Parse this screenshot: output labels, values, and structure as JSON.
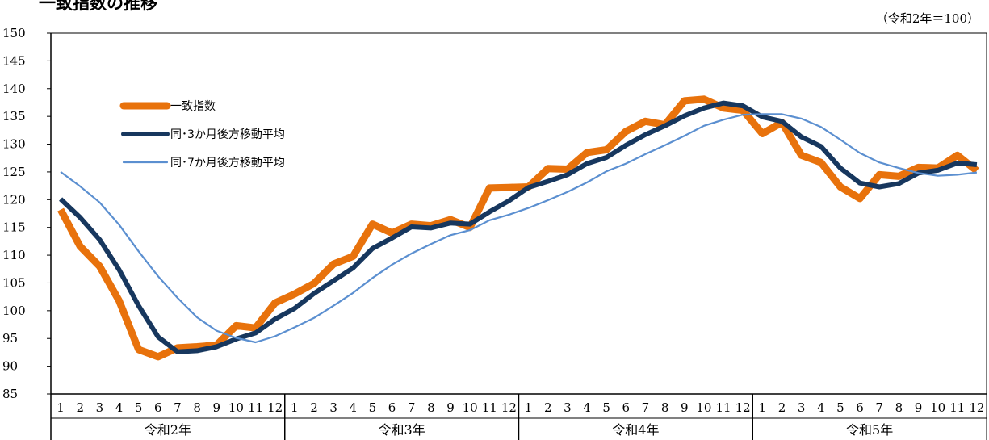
{
  "title": "一致指数の推移",
  "unit_note": "（令和2年＝100）",
  "chart_data": {
    "type": "line",
    "ylim": [
      85,
      150
    ],
    "y_ticks": [
      85,
      90,
      95,
      100,
      105,
      110,
      115,
      120,
      125,
      130,
      135,
      140,
      145,
      150
    ],
    "month_labels": [
      "1",
      "2",
      "3",
      "4",
      "5",
      "6",
      "7",
      "8",
      "9",
      "10",
      "11",
      "12"
    ],
    "years": [
      "令和2年",
      "令和3年",
      "令和4年",
      "令和5年"
    ],
    "legend_placement": "top-left",
    "series": [
      {
        "name": "一致指数",
        "color": "#E8720C",
        "values": [
          118.2,
          111.6,
          108.0,
          101.8,
          93.0,
          91.7,
          93.3,
          93.5,
          93.8,
          97.3,
          96.9,
          101.4,
          103.0,
          104.9,
          108.4,
          109.8,
          115.6,
          114.0,
          115.6,
          115.3,
          116.4,
          115.0,
          122.1,
          122.2,
          122.3,
          125.6,
          125.5,
          128.5,
          129.0,
          132.3,
          134.1,
          133.5,
          137.8,
          138.1,
          136.5,
          136.1,
          131.9,
          133.9,
          128.0,
          126.7,
          122.3,
          120.2,
          124.5,
          124.2,
          125.8,
          125.7,
          128.0,
          125.2
        ]
      },
      {
        "name": "同･3か月後方移動平均",
        "color": "#17375E",
        "values": [
          120.1,
          116.8,
          112.8,
          107.4,
          100.9,
          95.3,
          92.6,
          92.8,
          93.5,
          94.9,
          96.0,
          98.5,
          100.4,
          103.1,
          105.4,
          107.7,
          111.2,
          113.1,
          115.1,
          114.9,
          115.8,
          115.6,
          117.8,
          119.8,
          122.2,
          123.3,
          124.5,
          126.5,
          127.6,
          129.8,
          131.7,
          133.3,
          135.1,
          136.5,
          137.4,
          136.9,
          134.9,
          134.1,
          131.3,
          129.6,
          125.7,
          123.0,
          122.3,
          122.9,
          124.8,
          125.3,
          126.6,
          126.3
        ]
      },
      {
        "name": "同･7か月後方移動平均",
        "color": "#5B8FD0",
        "values": [
          125.0,
          122.4,
          119.5,
          115.5,
          110.7,
          106.2,
          102.3,
          98.8,
          96.4,
          95.1,
          94.3,
          95.4,
          97.0,
          98.7,
          100.9,
          103.2,
          105.9,
          108.3,
          110.3,
          112.0,
          113.6,
          114.5,
          116.3,
          117.3,
          118.5,
          119.9,
          121.4,
          123.1,
          125.1,
          126.5,
          128.2,
          129.8,
          131.5,
          133.3,
          134.4,
          135.3,
          135.4,
          135.4,
          134.6,
          133.1,
          130.8,
          128.4,
          126.7,
          125.7,
          124.8,
          124.3,
          124.5,
          124.9
        ]
      }
    ]
  }
}
